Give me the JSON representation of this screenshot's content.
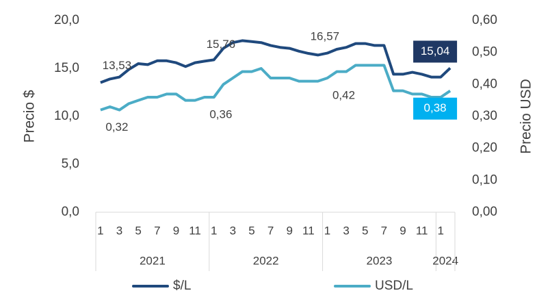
{
  "chart_data": {
    "type": "line",
    "y_label": "Precio $",
    "y2_label": "Precio USD",
    "groups": [
      {
        "name": "2021",
        "categories": [
          "1",
          null,
          "3",
          null,
          "5",
          null,
          "7",
          null,
          "9",
          null,
          "11",
          null
        ]
      },
      {
        "name": "2022",
        "categories": [
          "1",
          null,
          "3",
          null,
          "5",
          null,
          "7",
          null,
          "9",
          null,
          "11",
          null
        ]
      },
      {
        "name": "2023",
        "categories": [
          "1",
          null,
          "3",
          null,
          "5",
          null,
          "7",
          null,
          "9",
          null,
          "11",
          null
        ]
      },
      {
        "name": "2024",
        "categories": [
          "1",
          null
        ]
      }
    ],
    "series": [
      {
        "name": "$/L",
        "color": "#1f497d",
        "axis": "y",
        "values": [
          13.53,
          13.9,
          14.1,
          14.9,
          15.5,
          15.4,
          15.8,
          15.8,
          15.6,
          15.2,
          15.6,
          15.76,
          15.9,
          17.1,
          17.7,
          17.9,
          17.8,
          17.7,
          17.4,
          17.2,
          17.1,
          16.8,
          16.57,
          16.4,
          16.6,
          17.0,
          17.2,
          17.6,
          17.6,
          17.4,
          17.4,
          14.4,
          14.4,
          14.6,
          14.4,
          14.1,
          14.1,
          15.04
        ],
        "value_labels": [
          "13,53",
          null,
          null,
          null,
          null,
          null,
          null,
          null,
          null,
          null,
          null,
          "15,76",
          null,
          null,
          null,
          null,
          null,
          null,
          null,
          null,
          null,
          null,
          "16,57",
          null,
          null,
          null,
          null,
          null,
          null,
          null,
          null,
          null,
          null,
          null,
          null,
          null,
          null,
          "15,04"
        ]
      },
      {
        "name": "USD/L",
        "color": "#4bacc6",
        "axis": "y2",
        "values": [
          0.32,
          0.33,
          0.32,
          0.34,
          0.35,
          0.36,
          0.36,
          0.37,
          0.37,
          0.35,
          0.35,
          0.36,
          0.36,
          0.4,
          0.42,
          0.44,
          0.44,
          0.45,
          0.42,
          0.42,
          0.42,
          0.41,
          0.41,
          0.41,
          0.42,
          0.44,
          0.44,
          0.46,
          0.46,
          0.46,
          0.46,
          0.38,
          0.38,
          0.37,
          0.37,
          0.36,
          0.36,
          0.38
        ],
        "value_labels": [
          "0,32",
          null,
          null,
          null,
          null,
          null,
          null,
          null,
          null,
          null,
          null,
          "0,36",
          null,
          null,
          null,
          null,
          null,
          null,
          null,
          null,
          null,
          null,
          null,
          null,
          "0,42",
          null,
          null,
          null,
          null,
          null,
          null,
          null,
          null,
          null,
          null,
          null,
          null,
          "0,38"
        ]
      }
    ],
    "ylim": [
      0,
      20
    ],
    "yticks": [
      {
        "value": 0,
        "label": "0,0"
      },
      {
        "value": 5,
        "label": "5,0"
      },
      {
        "value": 10,
        "label": "10,0"
      },
      {
        "value": 15,
        "label": "15,0"
      },
      {
        "value": 20,
        "label": "20,0"
      }
    ],
    "y2lim": [
      0,
      0.6
    ],
    "y2ticks": [
      {
        "value": 0,
        "label": "0,00"
      },
      {
        "value": 0.1,
        "label": "0,10"
      },
      {
        "value": 0.2,
        "label": "0,20"
      },
      {
        "value": 0.3,
        "label": "0,30"
      },
      {
        "value": 0.4,
        "label": "0,40"
      },
      {
        "value": 0.5,
        "label": "0,50"
      },
      {
        "value": 0.6,
        "label": "0,60"
      }
    ],
    "grid": false,
    "legend": "bottom"
  }
}
